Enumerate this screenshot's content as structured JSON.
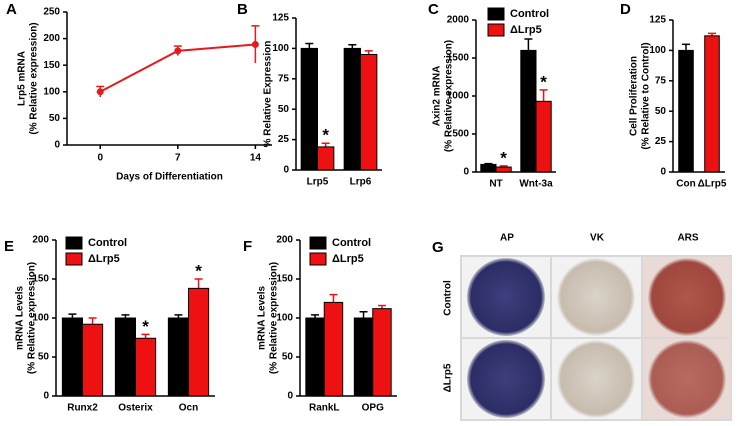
{
  "chart_data": [
    {
      "type": "line",
      "letter": "A",
      "ylabel": [
        "Lrp5 mRNA",
        "(% Relative expression)"
      ],
      "xlabel": "Days of Differentiation",
      "x": [
        0,
        7,
        14
      ],
      "xlim": [
        -3,
        15.5
      ],
      "xticks": [
        0,
        7,
        14
      ],
      "ylim": [
        0,
        250
      ],
      "yticks": [
        0,
        50,
        100,
        150,
        200,
        250
      ],
      "series": [
        {
          "color": "#e41a1c",
          "values": [
            100,
            177,
            189
          ],
          "errors": [
            10,
            9,
            35
          ]
        }
      ]
    },
    {
      "type": "bar",
      "letter": "B",
      "ylabel": [
        "% Relative Expression"
      ],
      "categories": [
        "Lrp5",
        "Lrp6"
      ],
      "ylim": [
        0,
        125
      ],
      "yticks": [
        0,
        25,
        50,
        75,
        100,
        125
      ],
      "series": [
        {
          "color": "#000000",
          "values": [
            100,
            100
          ],
          "errors": [
            4,
            3
          ]
        },
        {
          "color": "#ee1111",
          "values": [
            19,
            95
          ],
          "errors": [
            3,
            3
          ],
          "annotations": [
            "*",
            null
          ]
        }
      ]
    },
    {
      "type": "bar",
      "letter": "C",
      "ylabel": [
        "Axin2 mRNA",
        "(% Relative expression)"
      ],
      "categories": [
        "NT",
        "Wnt-3a"
      ],
      "ylim": [
        0,
        2000
      ],
      "yticks": [
        0,
        500,
        1000,
        1500,
        2000
      ],
      "legend": true,
      "series": [
        {
          "name": "Control",
          "color": "#000000",
          "values": [
            100,
            1600
          ],
          "errors": [
            10,
            150
          ]
        },
        {
          "name": "ΔLrp5",
          "color": "#ee1111",
          "values": [
            65,
            930
          ],
          "errors": [
            15,
            150
          ],
          "annotations": [
            "*",
            "*"
          ]
        }
      ]
    },
    {
      "type": "bar",
      "letter": "D",
      "ylabel": [
        "Cell Proliferation",
        "(% Relative to Control)"
      ],
      "categories": [
        "Con",
        "ΔLrp5"
      ],
      "ylim": [
        0,
        125
      ],
      "yticks": [
        0,
        25,
        50,
        75,
        100,
        125
      ],
      "series": [
        {
          "colors": [
            "#000000",
            "#ee1111"
          ],
          "values": [
            100,
            112
          ],
          "errors": [
            5,
            2
          ]
        }
      ]
    },
    {
      "type": "bar",
      "letter": "E",
      "ylabel": [
        "mRNA Levels",
        "(% Relative expression)"
      ],
      "categories": [
        "Runx2",
        "Osterix",
        "Ocn"
      ],
      "ylim": [
        0,
        200
      ],
      "yticks": [
        0,
        50,
        100,
        150,
        200
      ],
      "legend": true,
      "series": [
        {
          "name": "Control",
          "color": "#000000",
          "values": [
            100,
            100,
            100
          ],
          "errors": [
            5,
            4,
            4
          ]
        },
        {
          "name": "ΔLrp5",
          "color": "#ee1111",
          "values": [
            92,
            74,
            138
          ],
          "errors": [
            8,
            5,
            12
          ],
          "annotations": [
            null,
            "*",
            "*"
          ]
        }
      ]
    },
    {
      "type": "bar",
      "letter": "F",
      "ylabel": [
        "mRNA Levels",
        "(% Relative expression)"
      ],
      "categories": [
        "RankL",
        "OPG"
      ],
      "ylim": [
        0,
        200
      ],
      "yticks": [
        0,
        50,
        100,
        150,
        200
      ],
      "legend": true,
      "series": [
        {
          "name": "Control",
          "color": "#000000",
          "values": [
            100,
            100
          ],
          "errors": [
            4,
            8
          ]
        },
        {
          "name": "ΔLrp5",
          "color": "#ee1111",
          "values": [
            120,
            112
          ],
          "errors": [
            10,
            4
          ]
        }
      ]
    }
  ],
  "panel_g": {
    "letter": "G",
    "columns": [
      "AP",
      "VK",
      "ARS"
    ],
    "rows": [
      "Control",
      "ΔLrp5"
    ]
  }
}
